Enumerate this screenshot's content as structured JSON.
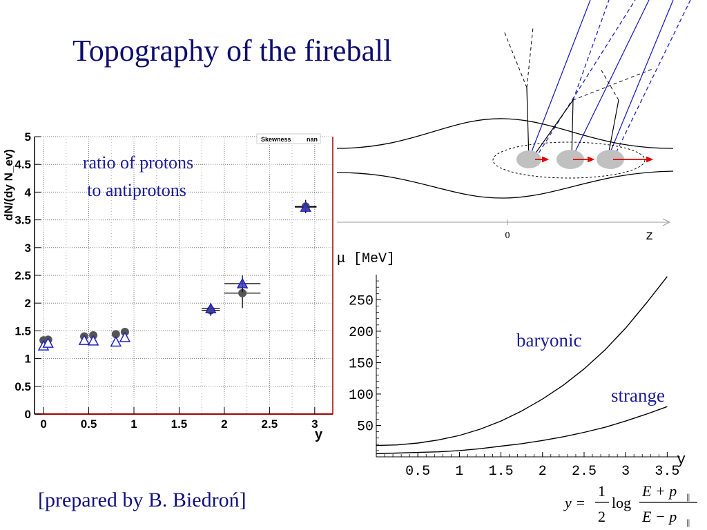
{
  "slide": {
    "title": "Topography of the fireball",
    "credit": "[prepared by B. Biedroń]"
  },
  "colors": {
    "title": "#0d0d6e",
    "annot": "#1a1a9a",
    "blue_line": "#2020c0",
    "red_arrow": "#e00000",
    "frame_red": "#a00000"
  },
  "chart_data": [
    {
      "type": "scatter",
      "ylabel": "dN/(dy N_ev)",
      "xlabel": "y",
      "stats_box": {
        "label": "Skewness",
        "value": "nan"
      },
      "annotation": [
        "ratio of protons",
        "to antiprotons"
      ],
      "xlim": [
        -0.1,
        3.2
      ],
      "ylim": [
        0,
        5
      ],
      "grid": true,
      "x_ticks": [
        "0",
        "0.5",
        "1",
        "1.5",
        "2",
        "2.5",
        "3"
      ],
      "y_ticks": [
        "0",
        "0.5",
        "1",
        "1.5",
        "2",
        "2.5",
        "3",
        "3.5",
        "4",
        "4.5",
        "5"
      ],
      "series": [
        {
          "marker": "filled-circle",
          "points": [
            {
              "x": 0.0,
              "y": 1.33
            },
            {
              "x": 0.05,
              "y": 1.34
            },
            {
              "x": 0.45,
              "y": 1.4
            },
            {
              "x": 0.55,
              "y": 1.42
            },
            {
              "x": 0.8,
              "y": 1.44
            },
            {
              "x": 0.9,
              "y": 1.48
            },
            {
              "x": 1.85,
              "y": 1.87,
              "xerr": 0.1,
              "yerr": 0.1
            },
            {
              "x": 2.2,
              "y": 2.18,
              "xerr": 0.2,
              "yerr": 0.27
            },
            {
              "x": 2.9,
              "y": 3.74,
              "xerr": 0.12,
              "yerr": 0.12
            }
          ]
        },
        {
          "marker": "open-triangle",
          "points": [
            {
              "x": 0.0,
              "y": 1.23
            },
            {
              "x": 0.05,
              "y": 1.28
            },
            {
              "x": 0.45,
              "y": 1.33
            },
            {
              "x": 0.55,
              "y": 1.32
            },
            {
              "x": 0.8,
              "y": 1.3
            },
            {
              "x": 0.9,
              "y": 1.38
            },
            {
              "x": 1.85,
              "y": 1.9,
              "xerr": 0.1,
              "yerr": 0.1
            },
            {
              "x": 2.2,
              "y": 2.35,
              "xerr": 0.2,
              "yerr": 0.15
            },
            {
              "x": 2.9,
              "y": 3.73,
              "xerr": 0.12,
              "yerr": 0.1
            }
          ]
        }
      ]
    },
    {
      "type": "line",
      "ylabel": "μ  [MeV]",
      "xlabel": "y",
      "xlim": [
        0,
        3.6
      ],
      "ylim": [
        0,
        290
      ],
      "x_ticks": [
        "0.5",
        "1",
        "1.5",
        "2",
        "2.5",
        "3",
        "3.5"
      ],
      "y_ticks": [
        "50",
        "100",
        "150",
        "200",
        "250"
      ],
      "series": [
        {
          "name": "baryonic",
          "x": [
            0,
            0.25,
            0.5,
            0.75,
            1.0,
            1.25,
            1.5,
            1.75,
            2.0,
            2.25,
            2.5,
            2.75,
            3.0,
            3.25,
            3.5
          ],
          "values": [
            18,
            19,
            22,
            27,
            34,
            44,
            57,
            73,
            92,
            114,
            140,
            170,
            205,
            245,
            287
          ]
        },
        {
          "name": "strange",
          "x": [
            0,
            0.25,
            0.5,
            0.75,
            1.0,
            1.25,
            1.5,
            1.75,
            2.0,
            2.25,
            2.5,
            2.75,
            3.0,
            3.25,
            3.5
          ],
          "values": [
            5,
            6,
            7,
            8,
            10,
            13,
            17,
            21,
            26,
            32,
            39,
            47,
            57,
            68,
            80
          ]
        }
      ]
    }
  ],
  "diagram": {
    "axis_zero": "0",
    "axis_label": "z"
  },
  "formula": {
    "lhs": "y =",
    "num": "1",
    "den": "2",
    "log": "log",
    "frac_num": "E + p",
    "frac_den": "E − p",
    "sub": "||"
  }
}
